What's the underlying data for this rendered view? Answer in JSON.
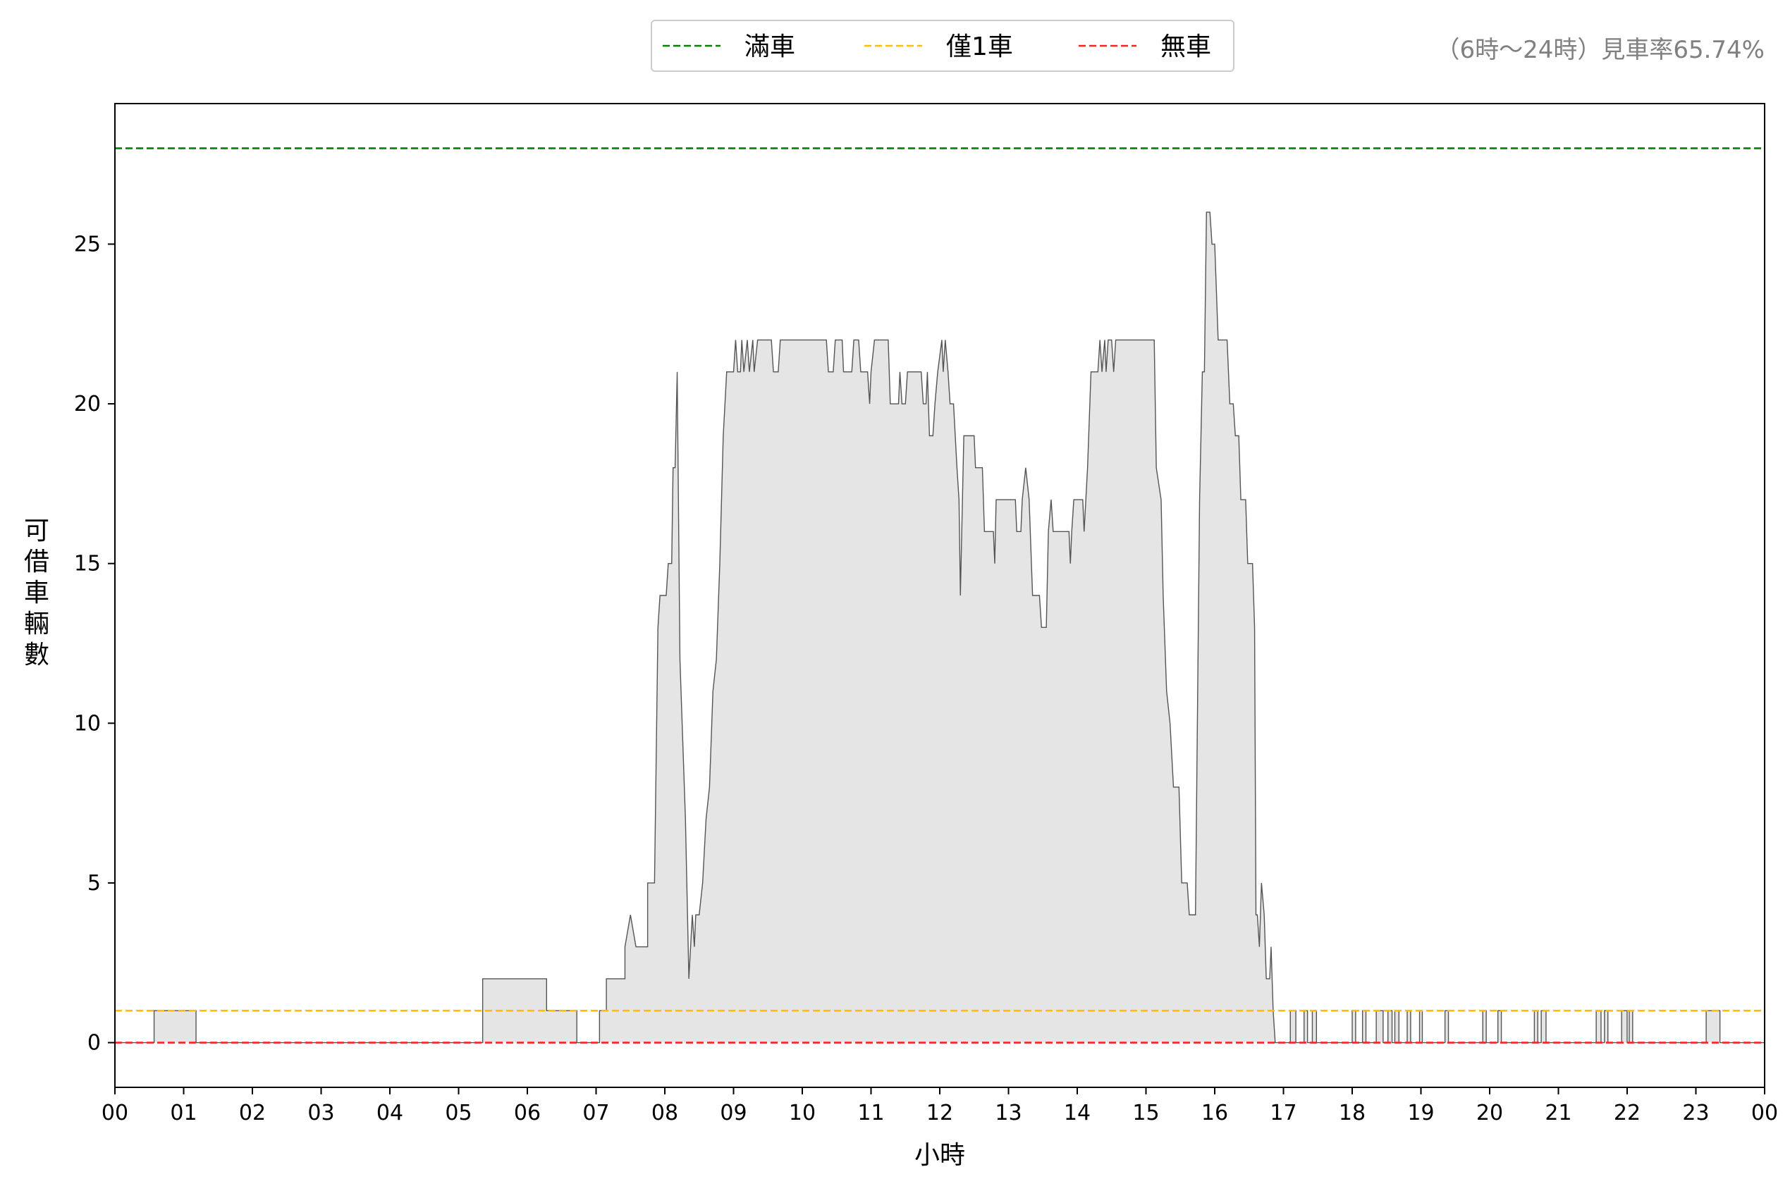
{
  "chart_data": {
    "type": "area",
    "xlabel": "小時",
    "ylabel": "可借車輛數",
    "xlim": [
      0,
      24
    ],
    "ylim": [
      -1.4,
      29.4
    ],
    "x_ticks": [
      "00",
      "01",
      "02",
      "03",
      "04",
      "05",
      "06",
      "07",
      "08",
      "09",
      "10",
      "11",
      "12",
      "13",
      "14",
      "15",
      "16",
      "17",
      "18",
      "19",
      "20",
      "21",
      "22",
      "23",
      "00"
    ],
    "y_ticks": [
      0,
      5,
      10,
      15,
      20,
      25
    ],
    "grid": false,
    "legend": {
      "placement": "top-center",
      "entries": [
        {
          "label": "滿車",
          "value": 28,
          "color": "#008000",
          "style": "dashed"
        },
        {
          "label": "僅1車",
          "value": 1,
          "color": "#FFBF00",
          "style": "dashed"
        },
        {
          "label": "無車",
          "value": 0,
          "color": "#FF2020",
          "style": "dashed"
        }
      ]
    },
    "annotation": "（6時～24時）見車率65.74%",
    "series": [
      {
        "fill": "#E5E5E5",
        "line": "#555555",
        "points": [
          [
            0,
            0
          ],
          [
            0.57,
            0
          ],
          [
            0.57,
            1
          ],
          [
            1.18,
            1
          ],
          [
            1.18,
            0
          ],
          [
            5.35,
            0
          ],
          [
            5.35,
            2
          ],
          [
            6.28,
            2
          ],
          [
            6.28,
            1
          ],
          [
            6.72,
            1
          ],
          [
            6.72,
            0
          ],
          [
            7.05,
            0
          ],
          [
            7.05,
            1
          ],
          [
            7.15,
            1
          ],
          [
            7.15,
            2
          ],
          [
            7.42,
            2
          ],
          [
            7.42,
            3
          ],
          [
            7.5,
            4
          ],
          [
            7.58,
            3
          ],
          [
            7.75,
            3
          ],
          [
            7.75,
            5
          ],
          [
            7.85,
            5
          ],
          [
            7.9,
            13
          ],
          [
            7.93,
            14
          ],
          [
            8.02,
            14
          ],
          [
            8.05,
            15
          ],
          [
            8.1,
            15
          ],
          [
            8.12,
            18
          ],
          [
            8.15,
            18
          ],
          [
            8.18,
            21
          ],
          [
            8.22,
            12
          ],
          [
            8.3,
            7
          ],
          [
            8.35,
            2
          ],
          [
            8.4,
            4
          ],
          [
            8.43,
            3
          ],
          [
            8.45,
            4
          ],
          [
            8.5,
            4
          ],
          [
            8.55,
            5
          ],
          [
            8.6,
            7
          ],
          [
            8.65,
            8
          ],
          [
            8.7,
            11
          ],
          [
            8.75,
            12
          ],
          [
            8.8,
            15
          ],
          [
            8.85,
            19
          ],
          [
            8.9,
            21
          ],
          [
            9.0,
            21
          ],
          [
            9.03,
            22
          ],
          [
            9.06,
            21
          ],
          [
            9.1,
            21
          ],
          [
            9.12,
            22
          ],
          [
            9.15,
            21
          ],
          [
            9.2,
            22
          ],
          [
            9.23,
            21
          ],
          [
            9.28,
            22
          ],
          [
            9.3,
            21
          ],
          [
            9.35,
            22
          ],
          [
            9.55,
            22
          ],
          [
            9.58,
            21
          ],
          [
            9.65,
            21
          ],
          [
            9.68,
            22
          ],
          [
            10.35,
            22
          ],
          [
            10.38,
            21
          ],
          [
            10.45,
            21
          ],
          [
            10.48,
            22
          ],
          [
            10.58,
            22
          ],
          [
            10.6,
            21
          ],
          [
            10.72,
            21
          ],
          [
            10.75,
            22
          ],
          [
            10.82,
            22
          ],
          [
            10.85,
            21
          ],
          [
            10.95,
            21
          ],
          [
            10.98,
            20
          ],
          [
            11.0,
            21
          ],
          [
            11.05,
            22
          ],
          [
            11.25,
            22
          ],
          [
            11.28,
            20
          ],
          [
            11.4,
            20
          ],
          [
            11.42,
            21
          ],
          [
            11.45,
            20
          ],
          [
            11.5,
            20
          ],
          [
            11.53,
            21
          ],
          [
            11.73,
            21
          ],
          [
            11.76,
            20
          ],
          [
            11.8,
            20
          ],
          [
            11.82,
            21
          ],
          [
            11.85,
            19
          ],
          [
            11.9,
            19
          ],
          [
            11.93,
            20
          ],
          [
            11.97,
            21
          ],
          [
            12.03,
            22
          ],
          [
            12.05,
            21
          ],
          [
            12.08,
            22
          ],
          [
            12.12,
            21
          ],
          [
            12.15,
            20
          ],
          [
            12.2,
            20
          ],
          [
            12.25,
            18
          ],
          [
            12.28,
            17
          ],
          [
            12.3,
            14
          ],
          [
            12.35,
            19
          ],
          [
            12.5,
            19
          ],
          [
            12.52,
            18
          ],
          [
            12.62,
            18
          ],
          [
            12.65,
            16
          ],
          [
            12.78,
            16
          ],
          [
            12.8,
            15
          ],
          [
            12.82,
            17
          ],
          [
            13.1,
            17
          ],
          [
            13.12,
            16
          ],
          [
            13.18,
            16
          ],
          [
            13.2,
            17
          ],
          [
            13.25,
            18
          ],
          [
            13.3,
            17
          ],
          [
            13.35,
            14
          ],
          [
            13.45,
            14
          ],
          [
            13.48,
            13
          ],
          [
            13.55,
            13
          ],
          [
            13.58,
            16
          ],
          [
            13.62,
            17
          ],
          [
            13.65,
            16
          ],
          [
            13.88,
            16
          ],
          [
            13.9,
            15
          ],
          [
            13.92,
            16
          ],
          [
            13.95,
            17
          ],
          [
            14.08,
            17
          ],
          [
            14.1,
            16
          ],
          [
            14.15,
            18
          ],
          [
            14.2,
            21
          ],
          [
            14.3,
            21
          ],
          [
            14.33,
            22
          ],
          [
            14.36,
            21
          ],
          [
            14.4,
            22
          ],
          [
            14.42,
            21
          ],
          [
            14.45,
            22
          ],
          [
            14.5,
            22
          ],
          [
            14.53,
            21
          ],
          [
            14.56,
            22
          ],
          [
            15.12,
            22
          ],
          [
            15.15,
            18
          ],
          [
            15.22,
            17
          ],
          [
            15.25,
            14
          ],
          [
            15.3,
            11
          ],
          [
            15.35,
            10
          ],
          [
            15.4,
            8
          ],
          [
            15.48,
            8
          ],
          [
            15.52,
            5
          ],
          [
            15.6,
            5
          ],
          [
            15.63,
            4
          ],
          [
            15.72,
            4
          ],
          [
            15.78,
            17
          ],
          [
            15.82,
            21
          ],
          [
            15.85,
            21
          ],
          [
            15.88,
            26
          ],
          [
            15.93,
            26
          ],
          [
            15.96,
            25
          ],
          [
            16.0,
            25
          ],
          [
            16.05,
            22
          ],
          [
            16.18,
            22
          ],
          [
            16.22,
            20
          ],
          [
            16.27,
            20
          ],
          [
            16.3,
            19
          ],
          [
            16.35,
            19
          ],
          [
            16.38,
            17
          ],
          [
            16.45,
            17
          ],
          [
            16.48,
            15
          ],
          [
            16.55,
            15
          ],
          [
            16.58,
            13
          ],
          [
            16.6,
            4
          ],
          [
            16.62,
            4
          ],
          [
            16.65,
            3
          ],
          [
            16.68,
            5
          ],
          [
            16.72,
            4
          ],
          [
            16.75,
            2
          ],
          [
            16.8,
            2
          ],
          [
            16.82,
            3
          ],
          [
            16.85,
            1
          ],
          [
            16.88,
            0
          ],
          [
            17.1,
            0
          ],
          [
            17.1,
            1
          ],
          [
            17.18,
            1
          ],
          [
            17.18,
            0
          ],
          [
            17.3,
            0
          ],
          [
            17.3,
            1
          ],
          [
            17.35,
            1
          ],
          [
            17.35,
            0
          ],
          [
            17.42,
            0
          ],
          [
            17.42,
            1
          ],
          [
            17.48,
            1
          ],
          [
            17.48,
            0
          ],
          [
            18.0,
            0
          ],
          [
            18.0,
            1
          ],
          [
            18.05,
            1
          ],
          [
            18.05,
            0
          ],
          [
            18.15,
            0
          ],
          [
            18.15,
            1
          ],
          [
            18.2,
            1
          ],
          [
            18.2,
            0
          ],
          [
            18.35,
            0
          ],
          [
            18.35,
            1
          ],
          [
            18.45,
            1
          ],
          [
            18.45,
            0
          ],
          [
            18.52,
            0
          ],
          [
            18.52,
            1
          ],
          [
            18.58,
            1
          ],
          [
            18.58,
            0
          ],
          [
            18.62,
            0
          ],
          [
            18.62,
            1
          ],
          [
            18.68,
            1
          ],
          [
            18.68,
            0
          ],
          [
            18.8,
            0
          ],
          [
            18.8,
            1
          ],
          [
            18.85,
            1
          ],
          [
            18.85,
            0
          ],
          [
            18.98,
            0
          ],
          [
            18.98,
            1
          ],
          [
            19.02,
            1
          ],
          [
            19.02,
            0
          ],
          [
            19.35,
            0
          ],
          [
            19.35,
            1
          ],
          [
            19.4,
            1
          ],
          [
            19.4,
            0
          ],
          [
            19.9,
            0
          ],
          [
            19.9,
            1
          ],
          [
            19.95,
            1
          ],
          [
            19.95,
            0
          ],
          [
            20.12,
            0
          ],
          [
            20.12,
            1
          ],
          [
            20.17,
            1
          ],
          [
            20.17,
            0
          ],
          [
            20.65,
            0
          ],
          [
            20.65,
            1
          ],
          [
            20.7,
            1
          ],
          [
            20.7,
            0
          ],
          [
            20.75,
            0
          ],
          [
            20.75,
            1
          ],
          [
            20.82,
            1
          ],
          [
            20.82,
            0
          ],
          [
            21.55,
            0
          ],
          [
            21.55,
            1
          ],
          [
            21.62,
            1
          ],
          [
            21.62,
            0
          ],
          [
            21.67,
            0
          ],
          [
            21.67,
            1
          ],
          [
            21.72,
            1
          ],
          [
            21.72,
            0
          ],
          [
            21.92,
            0
          ],
          [
            21.92,
            1
          ],
          [
            22.0,
            1
          ],
          [
            22.0,
            0
          ],
          [
            22.03,
            0
          ],
          [
            22.03,
            1
          ],
          [
            22.08,
            1
          ],
          [
            22.08,
            0
          ],
          [
            23.15,
            0
          ],
          [
            23.15,
            1
          ],
          [
            23.35,
            1
          ],
          [
            23.35,
            0
          ],
          [
            24,
            0
          ]
        ]
      }
    ]
  }
}
